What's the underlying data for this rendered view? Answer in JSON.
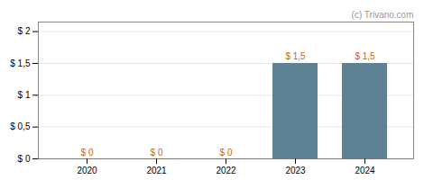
{
  "chart_data": {
    "type": "bar",
    "categories": [
      "2020",
      "2021",
      "2022",
      "2023",
      "2024"
    ],
    "values": [
      0,
      0,
      0,
      1.5,
      1.5
    ],
    "value_labels": [
      "$ 0",
      "$ 0",
      "$ 0",
      "$ 1,5",
      "$ 1,5"
    ],
    "data_labels": true,
    "color": "#5f8194",
    "ylim": [
      0,
      2.15
    ],
    "yticks": [
      {
        "value": 0,
        "label": "$ 0"
      },
      {
        "value": 0.5,
        "label": "$ 0,5"
      },
      {
        "value": 1.0,
        "label": "$ 1"
      },
      {
        "value": 1.5,
        "label": "$ 1,5"
      },
      {
        "value": 2.0,
        "label": "$ 2"
      }
    ],
    "grid": true,
    "annotations": [
      "(c) Trivano.com"
    ]
  }
}
